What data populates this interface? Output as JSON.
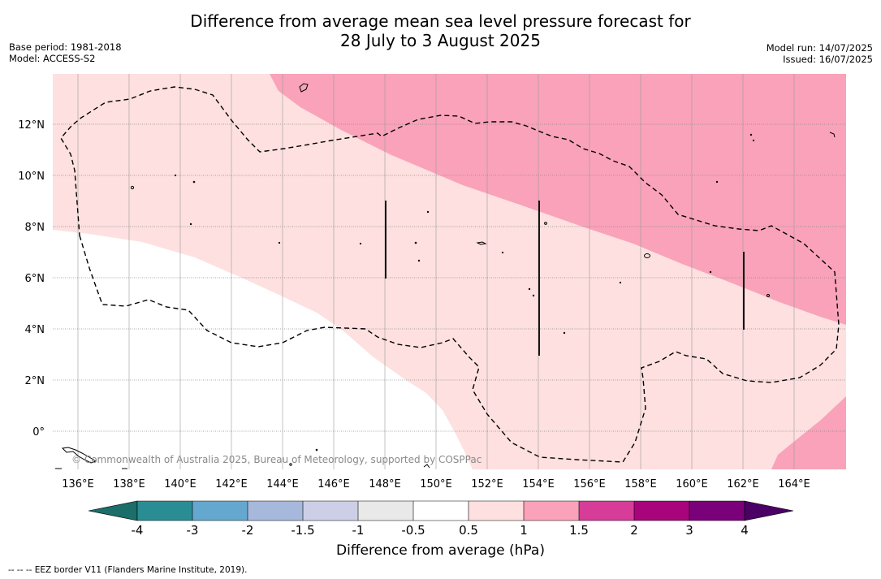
{
  "title": {
    "line1": "Difference from average mean sea level pressure forecast for",
    "line2": "28 July to 3 August 2025"
  },
  "meta_left": {
    "base_period": "Base period: 1981-2018",
    "model": "Model: ACCESS-S2"
  },
  "meta_right": {
    "model_run": "Model run: 14/07/2025",
    "issued": "Issued: 16/07/2025"
  },
  "map": {
    "copyright": "© Commonwealth of Australia 2025, Bureau of Meteorology, supported by COSPPac",
    "lon_ticks": [
      "136°E",
      "138°E",
      "140°E",
      "142°E",
      "144°E",
      "146°E",
      "148°E",
      "150°E",
      "152°E",
      "154°E",
      "156°E",
      "158°E",
      "160°E",
      "162°E",
      "164°E"
    ],
    "lat_ticks": [
      "12°N",
      "10°N",
      "8°N",
      "6°N",
      "4°N",
      "2°N",
      "0°"
    ],
    "fill_colors": {
      "0.5-1": "#fde0df",
      "1-1.5": "#f9a2b9",
      "-0.5-0.5": "#ffffff"
    }
  },
  "colorbar": {
    "label": "Difference from average (hPa)",
    "ticks": [
      "-4",
      "-3",
      "-2",
      "-1.5",
      "-1",
      "-0.5",
      "0.5",
      "1",
      "1.5",
      "2",
      "3",
      "4"
    ],
    "colors": [
      "#1b6e6a",
      "#2b8d94",
      "#64a8d0",
      "#a6b9dc",
      "#cccfe6",
      "#e9e9ea",
      "#ffffff",
      "#fde0df",
      "#f9a2b9",
      "#d63c98",
      "#a8047b",
      "#7a0179",
      "#4b0065"
    ]
  },
  "footer": "--  --  -- EEZ border V11 (Flanders Marine Institute, 2019)."
}
